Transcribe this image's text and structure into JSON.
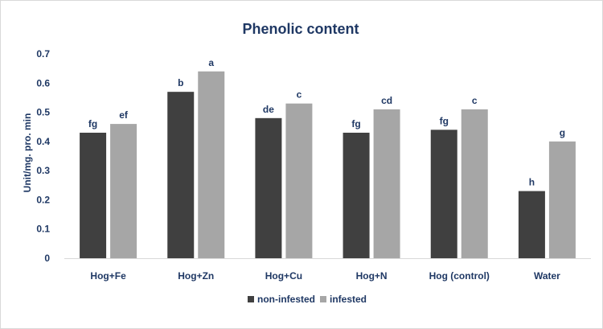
{
  "chart_data": {
    "type": "bar",
    "title": "Phenolic content",
    "ylabel": "Unit/mg. pro. min",
    "xlabel": "",
    "ylim": [
      0,
      0.7
    ],
    "yticks": [
      "0",
      "0.1",
      "0.2",
      "0.3",
      "0.4",
      "0.5",
      "0.6",
      "0.7"
    ],
    "grid": false,
    "legend_position": "bottom",
    "categories": [
      "Hog+Fe",
      "Hog+Zn",
      "Hog+Cu",
      "Hog+N",
      "Hog (control)",
      "Water"
    ],
    "series": [
      {
        "name": "non-infested",
        "color": "#404040",
        "values": [
          0.43,
          0.57,
          0.48,
          0.43,
          0.44,
          0.23
        ],
        "labels": [
          "fg",
          "b",
          "de",
          "fg",
          "fg",
          "h"
        ]
      },
      {
        "name": "infested",
        "color": "#a6a6a6",
        "values": [
          0.46,
          0.64,
          0.53,
          0.51,
          0.51,
          0.4
        ],
        "labels": [
          "ef",
          "a",
          "c",
          "cd",
          "c",
          "g"
        ]
      }
    ]
  }
}
